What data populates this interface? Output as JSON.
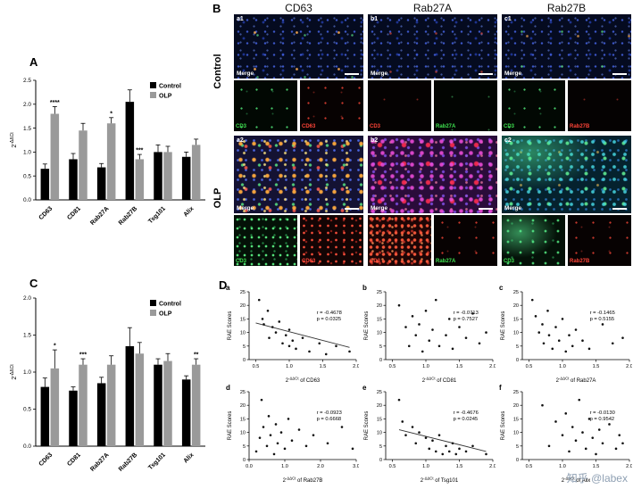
{
  "panelA_label": "A",
  "panelB_label": "B",
  "panelC_label": "C",
  "panelD_label": "D",
  "watermark": "知乎 @labex",
  "microscopy": {
    "columns": [
      "CD63",
      "Rab27A",
      "Rab27B"
    ],
    "row_labels": [
      "Control",
      "OLP"
    ],
    "merge_label": "Merge",
    "channel_colors": {
      "green": "#3ee04f",
      "red": "#ff4438"
    },
    "cells": [
      {
        "id": "a1",
        "sub_left": "CD3",
        "sub_left_channel": "green",
        "sub_right": "CD63",
        "sub_right_channel": "red"
      },
      {
        "id": "b1",
        "sub_left": "CD3",
        "sub_left_channel": "red",
        "sub_right": "Rab27A",
        "sub_right_channel": "green"
      },
      {
        "id": "c1",
        "sub_left": "CD3",
        "sub_left_channel": "green",
        "sub_right": "Rab27B",
        "sub_right_channel": "red"
      },
      {
        "id": "a2",
        "sub_left": "CD3",
        "sub_left_channel": "green",
        "sub_right": "CD63",
        "sub_right_channel": "red"
      },
      {
        "id": "b2",
        "sub_left": "CD3",
        "sub_left_channel": "red",
        "sub_right": "Rab27A",
        "sub_right_channel": "green"
      },
      {
        "id": "c2",
        "sub_left": "CD3",
        "sub_left_channel": "green",
        "sub_right": "Rab27B",
        "sub_right_channel": "red"
      }
    ]
  },
  "chart_data": [
    {
      "id": "A",
      "type": "bar",
      "ylabel": "2^-ΔΔCt",
      "ylim": [
        0,
        2.5
      ],
      "yticks": [
        0,
        0.5,
        1,
        1.5,
        2,
        2.5
      ],
      "categories": [
        "CD63",
        "CD81",
        "Rab27A",
        "Rab27B",
        "Tsg101",
        "Alix"
      ],
      "series": [
        {
          "name": "Control",
          "color": "#000000",
          "values": [
            0.65,
            0.85,
            0.68,
            2.05,
            1.0,
            0.9
          ],
          "errors": [
            0.1,
            0.12,
            0.08,
            0.25,
            0.15,
            0.1
          ]
        },
        {
          "name": "OLP",
          "color": "#9a9a9a",
          "values": [
            1.8,
            1.45,
            1.6,
            0.85,
            1.0,
            1.15
          ],
          "errors": [
            0.15,
            0.15,
            0.12,
            0.1,
            0.12,
            0.12
          ]
        }
      ],
      "annotations": [
        {
          "category": "CD63",
          "series": "OLP",
          "text": "****"
        },
        {
          "category": "Rab27A",
          "series": "OLP",
          "text": "*"
        },
        {
          "category": "Rab27B",
          "series": "OLP",
          "text": "***"
        }
      ]
    },
    {
      "id": "C",
      "type": "bar",
      "ylabel": "2^-ΔΔCt",
      "ylim": [
        0,
        2.0
      ],
      "yticks": [
        0,
        0.5,
        1,
        1.5,
        2
      ],
      "categories": [
        "CD63",
        "CD81",
        "Rab27A",
        "Rab27B",
        "Tsg101",
        "Alix"
      ],
      "series": [
        {
          "name": "Control",
          "color": "#000000",
          "values": [
            0.8,
            0.75,
            0.85,
            1.35,
            1.1,
            0.9
          ],
          "errors": [
            0.12,
            0.05,
            0.08,
            0.25,
            0.08,
            0.05
          ]
        },
        {
          "name": "OLP",
          "color": "#9a9a9a",
          "values": [
            1.05,
            1.1,
            1.1,
            1.25,
            1.15,
            1.1
          ],
          "errors": [
            0.25,
            0.08,
            0.12,
            0.15,
            0.1,
            0.08
          ]
        }
      ],
      "annotations": [
        {
          "category": "CD63",
          "series": "OLP",
          "text": "*"
        },
        {
          "category": "CD81",
          "series": "OLP",
          "text": "***"
        },
        {
          "category": "Alix",
          "series": "OLP",
          "text": "**"
        }
      ]
    },
    {
      "id": "a",
      "type": "scatter",
      "letter": "a",
      "marker": "CD63",
      "xlabel": "2^-ΔΔCt of CD63",
      "ylabel": "RAE Scores",
      "xlim": [
        0.4,
        2.0
      ],
      "xticks": [
        0.5,
        1.0,
        1.5,
        2.0
      ],
      "ylim": [
        0,
        25
      ],
      "yticks": [
        0,
        5,
        10,
        15,
        20,
        25
      ],
      "r": "r = -0.4678",
      "p": "p = 0.0325",
      "line": [
        [
          0.5,
          13.5
        ],
        [
          1.9,
          4.5
        ]
      ],
      "points": [
        [
          0.55,
          22
        ],
        [
          0.6,
          15
        ],
        [
          0.62,
          13
        ],
        [
          0.68,
          18
        ],
        [
          0.7,
          8
        ],
        [
          0.75,
          12
        ],
        [
          0.8,
          10
        ],
        [
          0.85,
          14
        ],
        [
          0.9,
          6
        ],
        [
          0.95,
          9
        ],
        [
          1.0,
          11
        ],
        [
          1.0,
          5
        ],
        [
          1.05,
          7
        ],
        [
          1.1,
          4
        ],
        [
          1.2,
          8
        ],
        [
          1.3,
          3
        ],
        [
          1.45,
          6
        ],
        [
          1.55,
          2
        ],
        [
          1.7,
          5
        ],
        [
          1.9,
          3
        ]
      ]
    },
    {
      "id": "b",
      "type": "scatter",
      "letter": "b",
      "marker": "CD81",
      "xlabel": "2^-ΔΔCt of CD81",
      "ylabel": "RAE Scores",
      "xlim": [
        0.4,
        2.0
      ],
      "xticks": [
        0.5,
        1.0,
        1.5,
        2.0
      ],
      "ylim": [
        0,
        25
      ],
      "yticks": [
        0,
        5,
        10,
        15,
        20,
        25
      ],
      "r": "r = -0.0713",
      "p": "p = 0.7527",
      "line": null,
      "points": [
        [
          0.6,
          20
        ],
        [
          0.7,
          12
        ],
        [
          0.75,
          5
        ],
        [
          0.8,
          16
        ],
        [
          0.85,
          9
        ],
        [
          0.9,
          13
        ],
        [
          0.95,
          3
        ],
        [
          1.0,
          18
        ],
        [
          1.05,
          7
        ],
        [
          1.1,
          11
        ],
        [
          1.15,
          22
        ],
        [
          1.2,
          5
        ],
        [
          1.3,
          9
        ],
        [
          1.35,
          15
        ],
        [
          1.4,
          4
        ],
        [
          1.5,
          12
        ],
        [
          1.6,
          8
        ],
        [
          1.7,
          17
        ],
        [
          1.8,
          6
        ],
        [
          1.9,
          10
        ]
      ]
    },
    {
      "id": "c",
      "type": "scatter",
      "letter": "c",
      "marker": "Rab27A",
      "xlabel": "2^-ΔΔCt of Rab27A",
      "ylabel": "RAE Scores",
      "xlim": [
        0.4,
        2.0
      ],
      "xticks": [
        0.5,
        1.0,
        1.5,
        2.0
      ],
      "ylim": [
        0,
        25
      ],
      "yticks": [
        0,
        5,
        10,
        15,
        20,
        25
      ],
      "r": "r = -0.1465",
      "p": "p = 0.5155",
      "line": null,
      "points": [
        [
          0.55,
          22
        ],
        [
          0.6,
          16
        ],
        [
          0.65,
          10
        ],
        [
          0.7,
          13
        ],
        [
          0.72,
          6
        ],
        [
          0.78,
          18
        ],
        [
          0.8,
          9
        ],
        [
          0.85,
          4
        ],
        [
          0.9,
          12
        ],
        [
          0.95,
          7
        ],
        [
          1.0,
          15
        ],
        [
          1.05,
          3
        ],
        [
          1.1,
          9
        ],
        [
          1.15,
          5
        ],
        [
          1.2,
          11
        ],
        [
          1.3,
          7
        ],
        [
          1.4,
          4
        ],
        [
          1.6,
          13
        ],
        [
          1.75,
          6
        ],
        [
          1.9,
          8
        ]
      ]
    },
    {
      "id": "d",
      "type": "scatter",
      "letter": "d",
      "marker": "Rab27B",
      "xlabel": "2^-ΔΔCt of Rab27B",
      "ylabel": "RAE Scores",
      "xlim": [
        0,
        3.0
      ],
      "xticks": [
        0.0,
        1.0,
        2.0,
        3.0
      ],
      "ylim": [
        0,
        25
      ],
      "yticks": [
        0,
        5,
        10,
        15,
        20,
        25
      ],
      "r": "r = -0.0923",
      "p": "p = 0.6668",
      "line": null,
      "points": [
        [
          0.2,
          3
        ],
        [
          0.3,
          8
        ],
        [
          0.35,
          22
        ],
        [
          0.4,
          12
        ],
        [
          0.5,
          5
        ],
        [
          0.55,
          16
        ],
        [
          0.6,
          9
        ],
        [
          0.7,
          2
        ],
        [
          0.75,
          13
        ],
        [
          0.8,
          6
        ],
        [
          0.9,
          10
        ],
        [
          1.0,
          4
        ],
        [
          1.1,
          15
        ],
        [
          1.2,
          7
        ],
        [
          1.4,
          11
        ],
        [
          1.6,
          5
        ],
        [
          1.8,
          9
        ],
        [
          2.2,
          6
        ],
        [
          2.6,
          12
        ],
        [
          2.9,
          4
        ]
      ]
    },
    {
      "id": "e",
      "type": "scatter",
      "letter": "e",
      "marker": "Tsg101",
      "xlabel": "2^-ΔΔCt of Tsg101",
      "ylabel": "RAE Scores",
      "xlim": [
        0.4,
        2.0
      ],
      "xticks": [
        0.5,
        1.0,
        1.5,
        2.0
      ],
      "ylim": [
        0,
        25
      ],
      "yticks": [
        0,
        5,
        10,
        15,
        20,
        25
      ],
      "r": "r = -0.4676",
      "p": "p = 0.0245",
      "line": [
        [
          0.6,
          11
        ],
        [
          1.9,
          3
        ]
      ],
      "points": [
        [
          0.6,
          22
        ],
        [
          0.65,
          14
        ],
        [
          0.7,
          9
        ],
        [
          0.8,
          12
        ],
        [
          0.85,
          6
        ],
        [
          0.9,
          10
        ],
        [
          1.0,
          8
        ],
        [
          1.05,
          4
        ],
        [
          1.1,
          7
        ],
        [
          1.15,
          3
        ],
        [
          1.2,
          9
        ],
        [
          1.25,
          2
        ],
        [
          1.3,
          5
        ],
        [
          1.35,
          3
        ],
        [
          1.4,
          6
        ],
        [
          1.45,
          2
        ],
        [
          1.5,
          4
        ],
        [
          1.6,
          3
        ],
        [
          1.7,
          5
        ],
        [
          1.9,
          2
        ]
      ]
    },
    {
      "id": "f",
      "type": "scatter",
      "letter": "f",
      "marker": "Alix",
      "xlabel": "2^-ΔΔCt of Alix",
      "ylabel": "RAE Scores",
      "xlim": [
        0.4,
        2.0
      ],
      "xticks": [
        0.5,
        1.0,
        1.5,
        2.0
      ],
      "ylim": [
        0,
        25
      ],
      "yticks": [
        0,
        5,
        10,
        15,
        20,
        25
      ],
      "r": "r = -0.0130",
      "p": "p = 0.9542",
      "line": null,
      "points": [
        [
          0.7,
          20
        ],
        [
          0.8,
          5
        ],
        [
          0.9,
          14
        ],
        [
          1.0,
          9
        ],
        [
          1.05,
          17
        ],
        [
          1.1,
          3
        ],
        [
          1.15,
          12
        ],
        [
          1.2,
          7
        ],
        [
          1.25,
          22
        ],
        [
          1.3,
          10
        ],
        [
          1.35,
          4
        ],
        [
          1.4,
          15
        ],
        [
          1.45,
          8
        ],
        [
          1.5,
          2
        ],
        [
          1.55,
          11
        ],
        [
          1.6,
          6
        ],
        [
          1.7,
          13
        ],
        [
          1.8,
          4
        ],
        [
          1.85,
          9
        ],
        [
          1.9,
          6
        ]
      ]
    }
  ]
}
